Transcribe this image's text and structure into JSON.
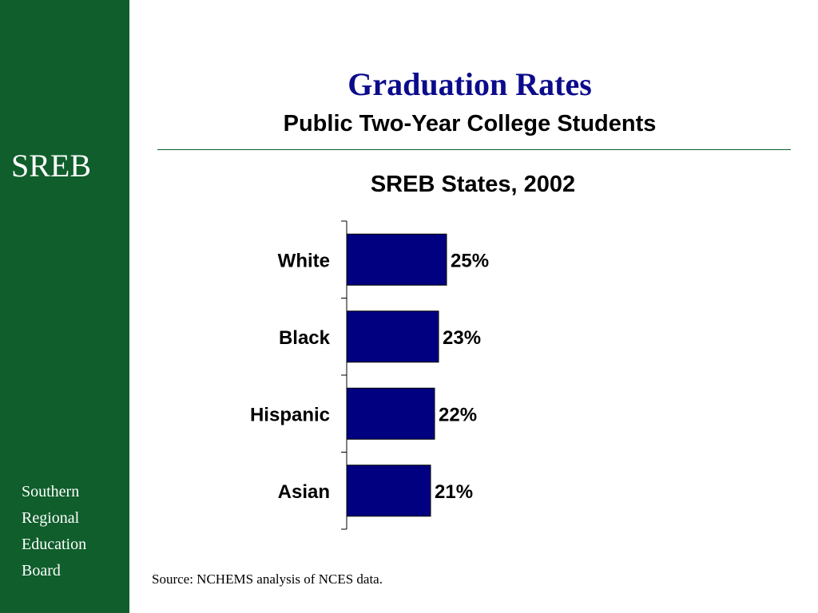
{
  "sidebar": {
    "logo": "SREB",
    "org_lines": [
      "Southern",
      "Regional",
      "Education",
      "Board"
    ]
  },
  "header": {
    "title": "Graduation Rates",
    "subtitle": "Public Two-Year College Students"
  },
  "source": "Source: NCHEMS analysis of NCES data.",
  "colors": {
    "sidebar": "#0f5e2b",
    "title": "#0b0b8c",
    "bar": "#000080"
  },
  "chart_data": {
    "type": "bar",
    "orientation": "horizontal",
    "title": "SREB States, 2002",
    "categories": [
      "White",
      "Black",
      "Hispanic",
      "Asian"
    ],
    "values": [
      25,
      23,
      22,
      21
    ],
    "data_labels": [
      "25%",
      "23%",
      "22%",
      "21%"
    ],
    "unit": "%",
    "xlim": [
      0,
      100
    ],
    "grid": false,
    "legend": "none"
  }
}
